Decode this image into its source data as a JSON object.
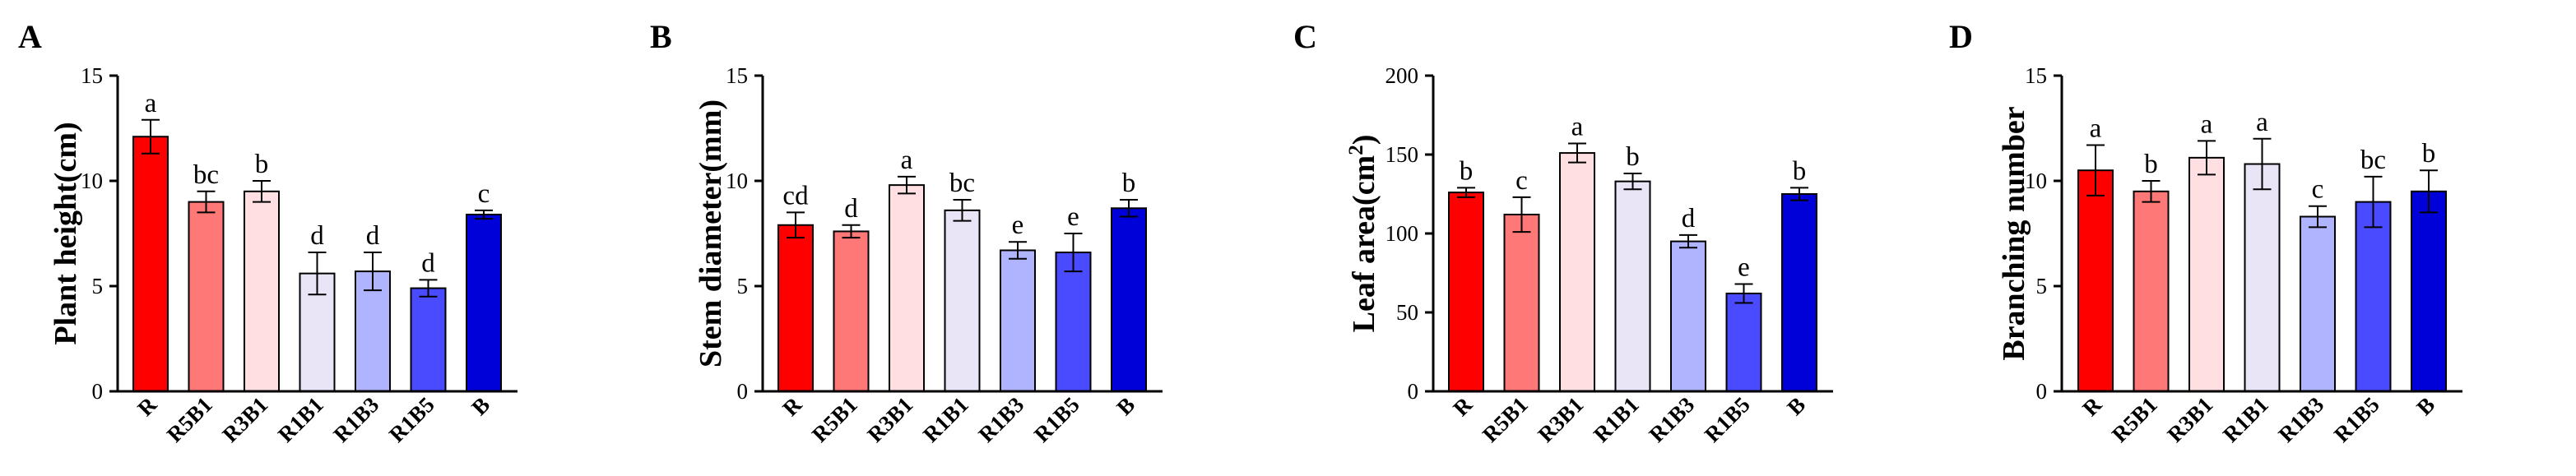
{
  "figure": {
    "panels": [
      {
        "letter": "A"
      },
      {
        "letter": "B"
      },
      {
        "letter": "C"
      },
      {
        "letter": "D"
      }
    ]
  },
  "chart_data": [
    {
      "type": "bar",
      "panel": "A",
      "title": "",
      "xlabel": "",
      "ylabel": "Plant height(cm)",
      "ylim": [
        0,
        15
      ],
      "yticks": [
        "0",
        "5",
        "10",
        "15"
      ],
      "categories": [
        "R",
        "R5B1",
        "R3B1",
        "R1B1",
        "R1B3",
        "R1B5",
        "B"
      ],
      "values": [
        12.1,
        9.0,
        9.5,
        5.6,
        5.7,
        4.9,
        8.4
      ],
      "errors": [
        0.8,
        0.5,
        0.5,
        1.0,
        0.9,
        0.4,
        0.2
      ],
      "letters": [
        "a",
        "bc",
        "b",
        "d",
        "d",
        "d",
        "c"
      ],
      "colors": [
        "#ff0000",
        "#ff7878",
        "#ffdfe2",
        "#e9e4f6",
        "#b0b4ff",
        "#4a4aff",
        "#0000d8"
      ]
    },
    {
      "type": "bar",
      "panel": "B",
      "title": "",
      "xlabel": "",
      "ylabel": "Stem diameter(mm)",
      "ylim": [
        0,
        15
      ],
      "yticks": [
        "0",
        "5",
        "10",
        "15"
      ],
      "categories": [
        "R",
        "R5B1",
        "R3B1",
        "R1B1",
        "R1B3",
        "R1B5",
        "B"
      ],
      "values": [
        7.9,
        7.6,
        9.8,
        8.6,
        6.7,
        6.6,
        8.7
      ],
      "errors": [
        0.6,
        0.3,
        0.4,
        0.5,
        0.4,
        0.9,
        0.4
      ],
      "letters": [
        "cd",
        "d",
        "a",
        "bc",
        "e",
        "e",
        "b"
      ],
      "colors": [
        "#ff0000",
        "#ff7878",
        "#ffdfe2",
        "#e9e4f6",
        "#b0b4ff",
        "#4a4aff",
        "#0000d8"
      ]
    },
    {
      "type": "bar",
      "panel": "C",
      "title": "",
      "xlabel": "",
      "ylabel": "Leaf area(cm",
      "ylabel_superscript": "2",
      "ylabel_suffix": ")",
      "ylim": [
        0,
        200
      ],
      "yticks": [
        "0",
        "50",
        "100",
        "150",
        "200"
      ],
      "categories": [
        "R",
        "R5B1",
        "R3B1",
        "R1B1",
        "R1B3",
        "R1B5",
        "B"
      ],
      "values": [
        126,
        112,
        151,
        133,
        95,
        62,
        125
      ],
      "errors": [
        3,
        11,
        6,
        5,
        4,
        6,
        4
      ],
      "letters": [
        "b",
        "c",
        "a",
        "b",
        "d",
        "e",
        "b"
      ],
      "colors": [
        "#ff0000",
        "#ff7878",
        "#ffdfe2",
        "#e9e4f6",
        "#b0b4ff",
        "#4a4aff",
        "#0000d8"
      ]
    },
    {
      "type": "bar",
      "panel": "D",
      "title": "",
      "xlabel": "",
      "ylabel": "Branching number",
      "ylim": [
        0,
        15
      ],
      "yticks": [
        "0",
        "5",
        "10",
        "15"
      ],
      "categories": [
        "R",
        "R5B1",
        "R3B1",
        "R1B1",
        "R1B3",
        "R1B5",
        "B"
      ],
      "values": [
        10.5,
        9.5,
        11.1,
        10.8,
        8.3,
        9.0,
        9.5
      ],
      "errors": [
        1.2,
        0.5,
        0.8,
        1.2,
        0.5,
        1.2,
        1.0
      ],
      "letters": [
        "a",
        "b",
        "a",
        "a",
        "c",
        "bc",
        "b"
      ],
      "colors": [
        "#ff0000",
        "#ff7878",
        "#ffdfe2",
        "#e9e4f6",
        "#b0b4ff",
        "#4a4aff",
        "#0000d8"
      ]
    }
  ]
}
